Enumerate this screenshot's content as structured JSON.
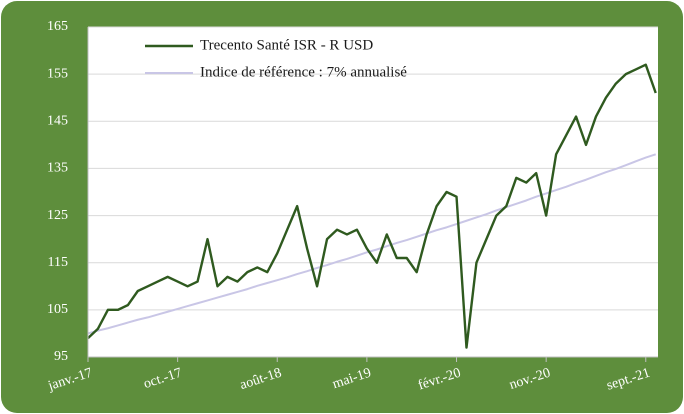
{
  "chart_data": {
    "type": "line",
    "categories": [
      "janv.-17",
      null,
      null,
      null,
      null,
      null,
      null,
      null,
      null,
      "oct.-17",
      null,
      null,
      null,
      null,
      null,
      null,
      null,
      null,
      null,
      "août-18",
      null,
      null,
      null,
      null,
      null,
      null,
      null,
      null,
      "mai-19",
      null,
      null,
      null,
      null,
      null,
      null,
      null,
      null,
      "févr.-20",
      null,
      null,
      null,
      null,
      null,
      null,
      null,
      null,
      "nov.-20",
      null,
      null,
      null,
      null,
      null,
      null,
      null,
      null,
      null,
      "sept.-21",
      null
    ],
    "series": [
      {
        "name": "Trecento Santé ISR - R USD",
        "color": "#2f5a1f",
        "values": [
          99,
          101,
          105,
          105,
          106,
          109,
          110,
          111,
          112,
          111,
          110,
          111,
          120,
          110,
          112,
          111,
          113,
          114,
          113,
          117,
          122,
          127,
          118,
          110,
          120,
          122,
          121,
          122,
          118,
          115,
          121,
          116,
          116,
          113,
          121,
          127,
          130,
          129,
          97,
          115,
          120,
          125,
          127,
          133,
          132,
          134,
          125,
          138,
          142,
          146,
          140,
          146,
          150,
          153,
          155,
          156,
          157,
          151
        ]
      },
      {
        "name": "Indice de référence : 7% annualisé",
        "color": "#c9c6e6",
        "values": [
          100.0,
          100.6,
          101.1,
          101.7,
          102.3,
          102.9,
          103.4,
          104.0,
          104.6,
          105.2,
          105.8,
          106.4,
          107.0,
          107.6,
          108.2,
          108.8,
          109.4,
          110.1,
          110.7,
          111.3,
          111.9,
          112.6,
          113.2,
          113.9,
          114.5,
          115.2,
          115.8,
          116.5,
          117.2,
          117.8,
          118.5,
          119.2,
          119.8,
          120.5,
          121.2,
          121.9,
          122.5,
          123.2,
          123.9,
          124.6,
          125.3,
          126.1,
          126.8,
          127.5,
          128.2,
          129.0,
          129.7,
          130.4,
          131.1,
          131.9,
          132.6,
          133.4,
          134.2,
          134.9,
          135.7,
          136.5,
          137.3,
          138.0
        ]
      }
    ],
    "ylim": [
      95,
      165
    ],
    "yticks": [
      95,
      105,
      115,
      125,
      135,
      145,
      155,
      165
    ],
    "grid": true,
    "legend": "top-left"
  }
}
